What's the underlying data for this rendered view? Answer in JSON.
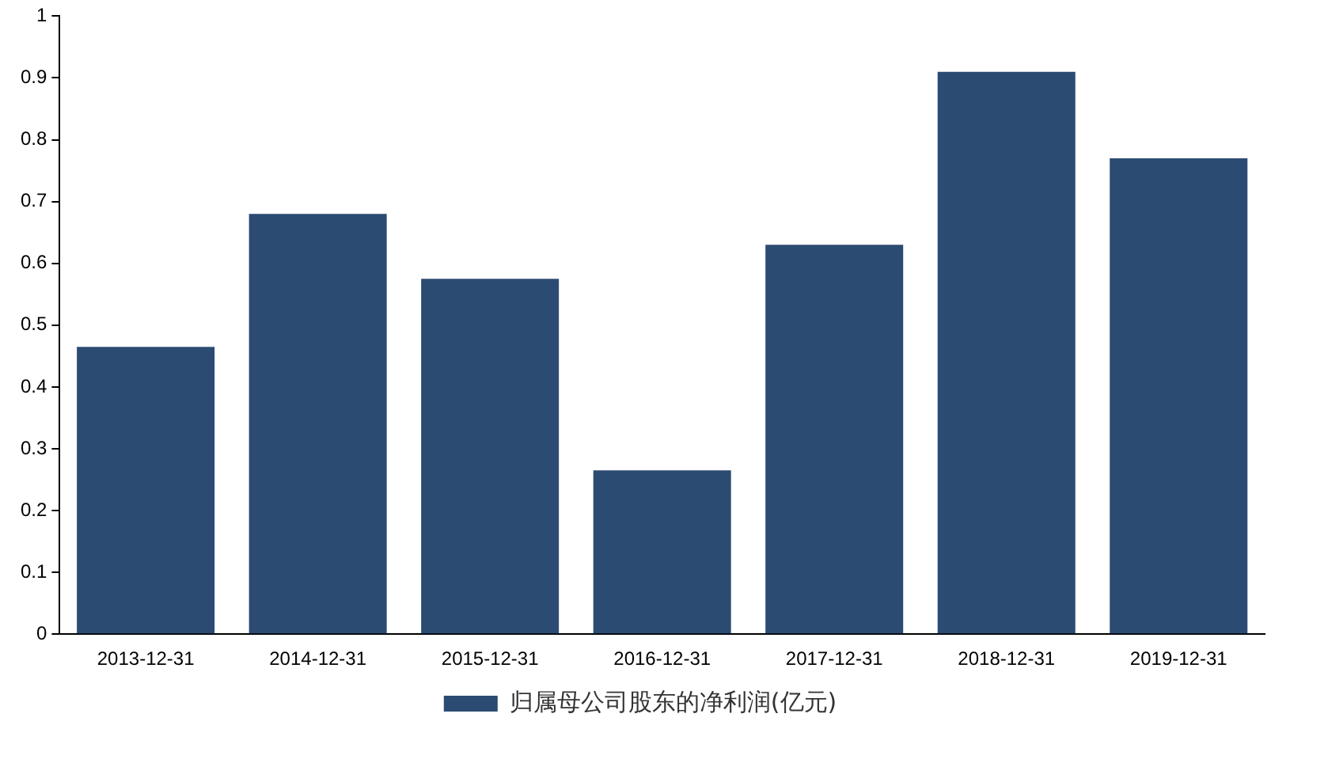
{
  "chart_data": {
    "type": "bar",
    "categories": [
      "2013-12-31",
      "2014-12-31",
      "2015-12-31",
      "2016-12-31",
      "2017-12-31",
      "2018-12-31",
      "2019-12-31"
    ],
    "series": [
      {
        "name": "归属母公司股东的净利润(亿元)",
        "color": "#2c4b73",
        "values": [
          0.465,
          0.68,
          0.575,
          0.265,
          0.63,
          0.91,
          0.77
        ]
      }
    ],
    "ylim": [
      0,
      1
    ],
    "yticks": [
      0,
      0.1,
      0.2,
      0.3,
      0.4,
      0.5,
      0.6,
      0.7,
      0.8,
      0.9,
      1
    ],
    "grid": false,
    "legend": "bottom"
  }
}
